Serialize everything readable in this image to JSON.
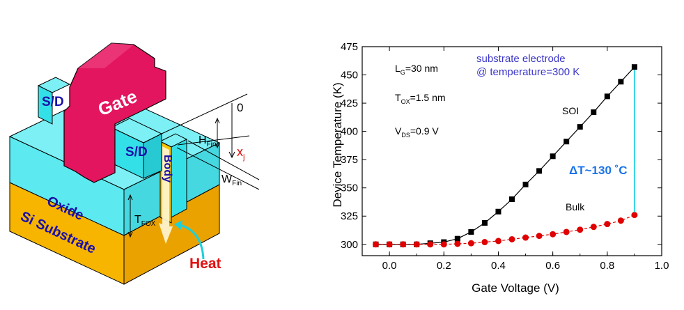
{
  "diagram": {
    "labels": {
      "gate": "Gate",
      "sd_left": "S/D",
      "sd_right": "S/D",
      "body": "Body",
      "oxide": "Oxide",
      "substrate": "Si Substrate",
      "heat": "Heat",
      "t_fox": "T",
      "t_fox_sub": "FOX",
      "h_fin": "H",
      "h_fin_sub": "Fin",
      "w_fin": "W",
      "w_fin_sub": "Fin",
      "zero": "0",
      "x_j": "x",
      "x_j_sub": "j"
    },
    "colors": {
      "gate": "#e3155e",
      "sd": "#33e0e8",
      "oxide": "#5ceaf0",
      "substrate": "#f7b500",
      "label_blue": "#1a0fa8",
      "heat_red": "#e01010",
      "arrow_cyan": "#20d0d8"
    }
  },
  "chart_data": {
    "type": "line",
    "xlabel": "Gate Voltage (V)",
    "ylabel": "Device Temperature (K)",
    "xlim": [
      -0.1,
      1.0
    ],
    "ylim": [
      290,
      475
    ],
    "xticks": [
      0.0,
      0.2,
      0.4,
      0.6,
      0.8,
      1.0
    ],
    "xtick_labels": [
      "0.0",
      "0.2",
      "0.4",
      "0.6",
      "0.8",
      "1.0"
    ],
    "yticks": [
      300,
      325,
      350,
      375,
      400,
      425,
      450,
      475
    ],
    "ytick_labels": [
      "300",
      "325",
      "350",
      "375",
      "400",
      "425",
      "450",
      "475"
    ],
    "series": [
      {
        "name": "SOI",
        "marker": "square",
        "color": "#000000",
        "x": [
          -0.05,
          0.0,
          0.05,
          0.1,
          0.15,
          0.2,
          0.25,
          0.3,
          0.35,
          0.4,
          0.45,
          0.5,
          0.55,
          0.6,
          0.65,
          0.7,
          0.75,
          0.8,
          0.85,
          0.9
        ],
        "y": [
          300,
          300,
          300,
          300,
          301,
          302,
          305,
          311,
          319,
          329,
          340,
          353,
          365,
          378,
          391,
          404,
          417,
          431,
          444,
          457
        ]
      },
      {
        "name": "Bulk",
        "marker": "circle",
        "color": "#e00000",
        "x": [
          -0.05,
          0.0,
          0.05,
          0.1,
          0.15,
          0.2,
          0.25,
          0.3,
          0.35,
          0.4,
          0.45,
          0.5,
          0.55,
          0.6,
          0.65,
          0.7,
          0.75,
          0.8,
          0.85,
          0.9
        ],
        "y": [
          300,
          300,
          300,
          300,
          300,
          300,
          300.5,
          301,
          302,
          303,
          304.5,
          306,
          307.5,
          309,
          311,
          313,
          315.5,
          318,
          321,
          326
        ]
      }
    ],
    "annotations": {
      "params": [
        {
          "main": "L",
          "sub": "G",
          "rest": "=30 nm"
        },
        {
          "main": "T",
          "sub": "OX",
          "rest": "=1.5 nm"
        },
        {
          "main": "V",
          "sub": "DS",
          "rest": "=0.9 V"
        }
      ],
      "electrode_line1": "substrate electrode",
      "electrode_line2": "@ temperature=300 K",
      "soi_label": "SOI",
      "bulk_label": "Bulk",
      "delta": "ΔT~130 ˚C"
    },
    "colors": {
      "electrode_text": "#3a35c8",
      "delta_text": "#1a73e8",
      "delta_line": "#33d6e6"
    },
    "grid": false
  }
}
